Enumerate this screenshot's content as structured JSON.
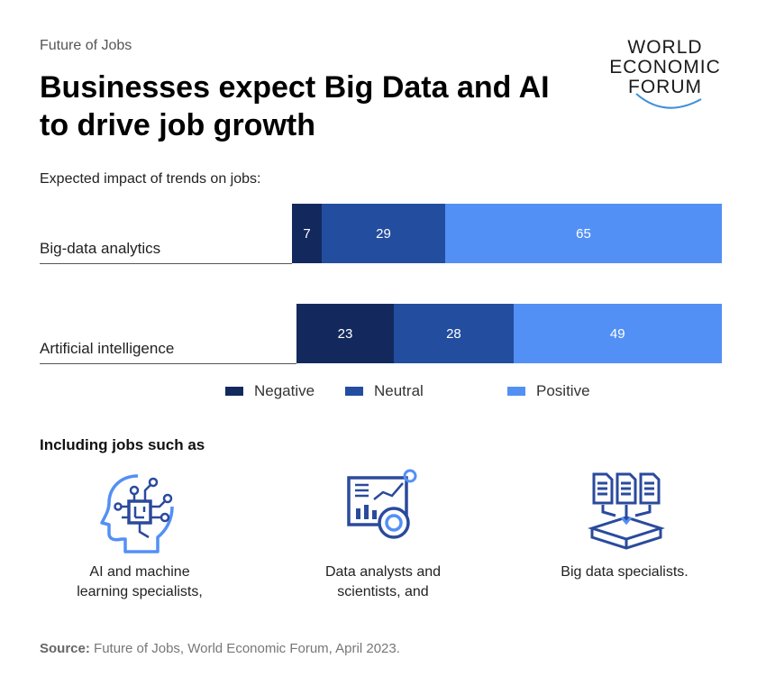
{
  "header": {
    "eyebrow": "Future of Jobs",
    "title": "Businesses expect Big Data and AI to drive job growth"
  },
  "logo": {
    "line1": "WORLD",
    "line2": "ECONOMIC",
    "line3": "FORUM"
  },
  "chart_data": {
    "type": "bar",
    "orientation": "horizontal",
    "stacked": true,
    "subtitle": "Expected impact of trends on jobs:",
    "categories": [
      "Big-data analytics",
      "Artificial intelligence"
    ],
    "series": [
      {
        "name": "Negative",
        "values": [
          7,
          23
        ],
        "color": "#13295e"
      },
      {
        "name": "Neutral",
        "values": [
          29,
          28
        ],
        "color": "#234d9e"
      },
      {
        "name": "Positive",
        "values": [
          65,
          49
        ],
        "color": "#5390f5"
      }
    ],
    "legend_position": "bottom"
  },
  "jobs_section": {
    "heading": "Including jobs such as",
    "items": [
      {
        "label_line1": "AI and machine",
        "label_line2": "learning specialists,",
        "icon": "ai-head-icon"
      },
      {
        "label_line1": "Data analysts and",
        "label_line2": "scientists, and",
        "icon": "data-analytics-icon"
      },
      {
        "label_line1": "Big data specialists.",
        "label_line2": "",
        "icon": "big-data-icon"
      }
    ]
  },
  "source": {
    "label": "Source:",
    "text": " Future of Jobs, World Economic Forum, April 2023."
  },
  "colors": {
    "icon": "#2a4a9c",
    "icon_accent": "#5390f5"
  }
}
